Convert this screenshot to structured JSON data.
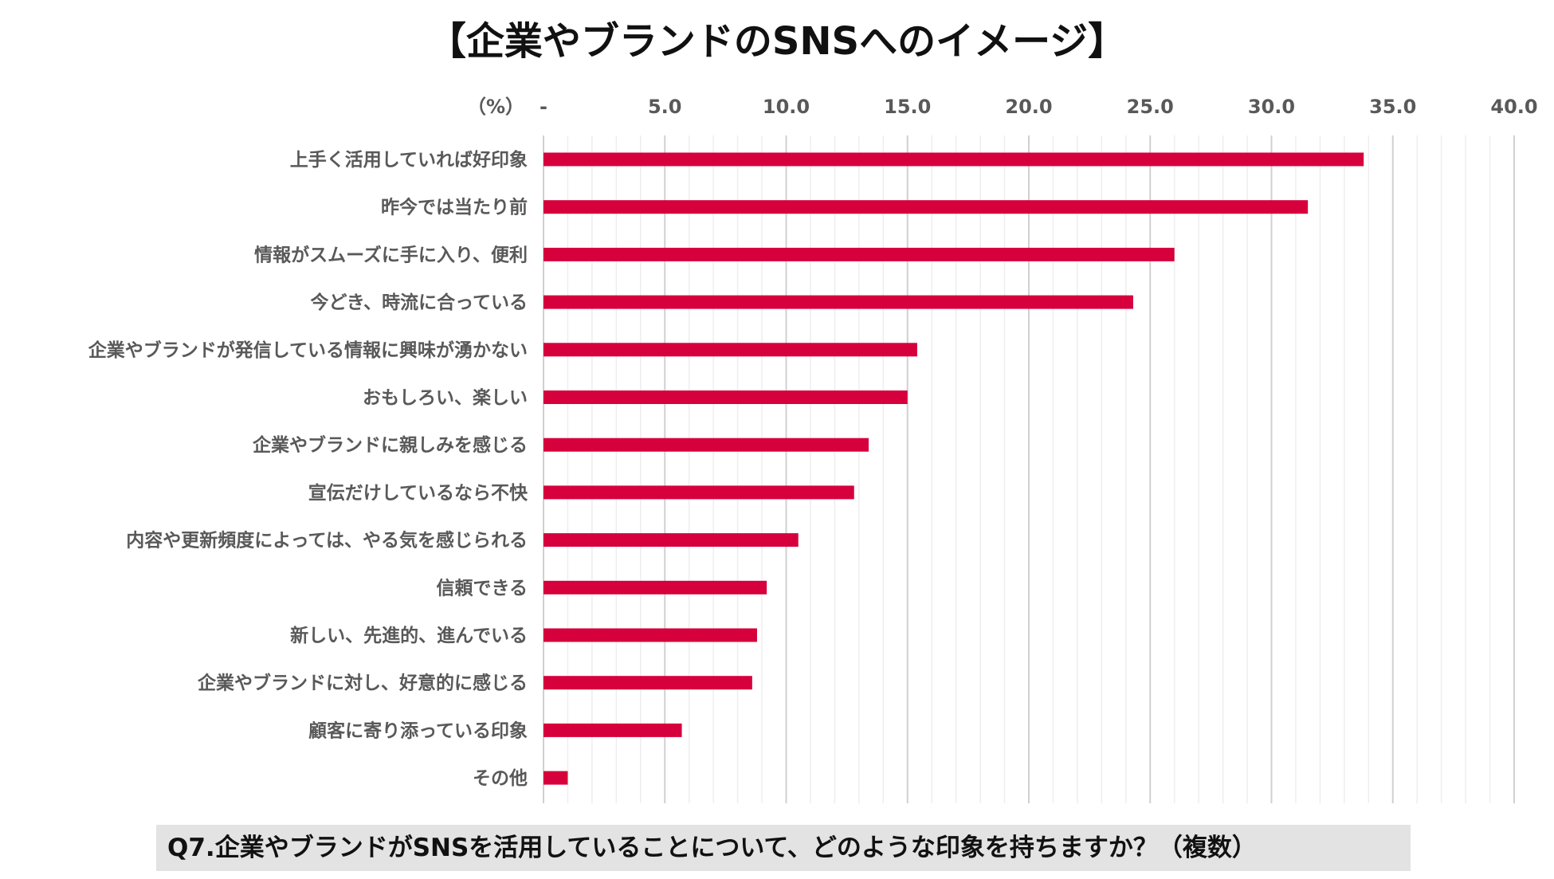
{
  "chart_data": {
    "type": "bar",
    "orientation": "horizontal",
    "title": "【企業やブランドのSNSへのイメージ】",
    "unit_label": "（%）",
    "xlim": [
      0,
      40
    ],
    "x_ticks": [
      "-",
      "5.0",
      "10.0",
      "15.0",
      "20.0",
      "25.0",
      "30.0",
      "35.0",
      "40.0"
    ],
    "grid": true,
    "bar_color": "#d6003c",
    "categories": [
      "上手く活用していれば好印象",
      "昨今では当たり前",
      "情報がスムーズに手に入り、便利",
      "今どき、時流に合っている",
      "企業やブランドが発信している情報に興味が湧かない",
      "おもしろい、楽しい",
      "企業やブランドに親しみを感じる",
      "宣伝だけしているなら不快",
      "内容や更新頻度によっては、やる気を感じられる",
      "信頼できる",
      "新しい、先進的、進んでいる",
      "企業やブランドに対し、好意的に感じる",
      "顧客に寄り添っている印象",
      "その他"
    ],
    "values": [
      33.8,
      31.5,
      26.0,
      24.3,
      15.4,
      15.0,
      13.4,
      12.8,
      10.5,
      9.2,
      8.8,
      8.6,
      5.7,
      1.0
    ],
    "question": "Q7.企業やブランドがSNSを活用していることについて、どのような印象を持ちますか？（複数）"
  }
}
